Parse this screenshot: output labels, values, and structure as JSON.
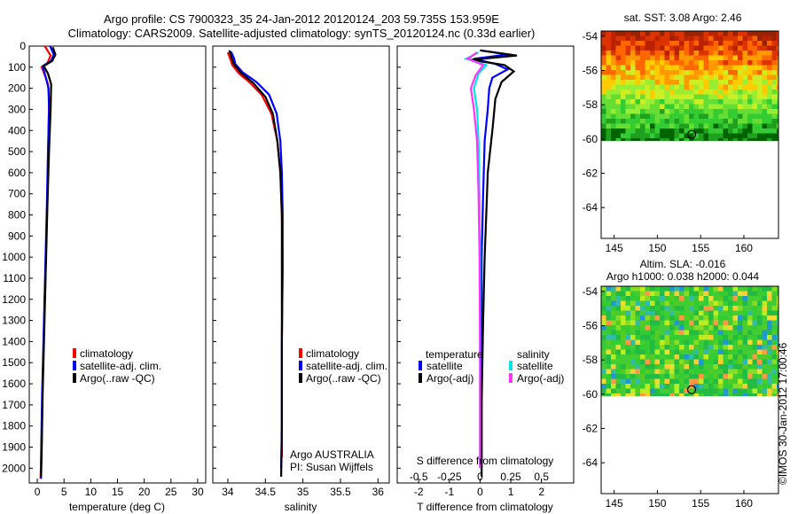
{
  "header": {
    "line1": "Argo profile: CS 7900323_35 24-Jan-2012 20120124_203 59.735S 153.959E",
    "line2": "Climatology: CARS2009. Satellite-adjusted climatology: synTS_20120124.nc (0.33d earlier)"
  },
  "footer": {
    "agency": "Argo AUSTRALIA",
    "pi": "PI: Susan Wijffels",
    "stamp": "©IMOS 30-Jan-2012 17:00:46"
  },
  "colors": {
    "climatology": "#ff0000",
    "satellite": "#0000ff",
    "argo": "#000000",
    "sal_sat": "#00e5e5",
    "sal_argo": "#ff33ff"
  },
  "chart_data": [
    {
      "id": "temperature",
      "type": "line",
      "xlabel": "temperature (deg C)",
      "xlim": [
        -1.5,
        31.5
      ],
      "ylim": [
        2070,
        0
      ],
      "xticks": [
        0,
        5,
        10,
        15,
        20,
        25,
        30
      ],
      "yticks": [
        0,
        100,
        200,
        300,
        400,
        500,
        600,
        700,
        800,
        900,
        1000,
        1100,
        1200,
        1300,
        1400,
        1500,
        1600,
        1700,
        1800,
        1900,
        2000
      ],
      "legend": [
        "climatology",
        "satellite-adj. clim.",
        "Argo(..raw -QC)"
      ],
      "series": [
        {
          "name": "climatology",
          "color": "#ff0000",
          "points": [
            [
              1.4,
              0
            ],
            [
              2.5,
              45
            ],
            [
              1.9,
              80
            ],
            [
              0.8,
              100
            ],
            [
              1.3,
              130
            ],
            [
              2.0,
              180
            ],
            [
              2.2,
              250
            ],
            [
              2.1,
              400
            ],
            [
              1.9,
              700
            ],
            [
              1.6,
              1000
            ],
            [
              1.3,
              1300
            ],
            [
              1.0,
              1600
            ],
            [
              0.8,
              1900
            ],
            [
              0.6,
              2050
            ]
          ]
        },
        {
          "name": "satellite-adj. clim.",
          "color": "#0000ff",
          "points": [
            [
              2.4,
              0
            ],
            [
              3.1,
              40
            ],
            [
              2.6,
              70
            ],
            [
              1.0,
              95
            ],
            [
              1.5,
              140
            ],
            [
              2.1,
              200
            ],
            [
              2.2,
              300
            ],
            [
              2.0,
              500
            ],
            [
              1.8,
              750
            ],
            [
              1.5,
              1050
            ],
            [
              1.2,
              1350
            ],
            [
              0.9,
              1650
            ],
            [
              0.7,
              1950
            ],
            [
              0.7,
              2050
            ]
          ]
        },
        {
          "name": "Argo(..raw -QC)",
          "color": "#000000",
          "points": [
            [
              2.9,
              5
            ],
            [
              3.4,
              40
            ],
            [
              2.8,
              70
            ],
            [
              1.2,
              95
            ],
            [
              2.0,
              130
            ],
            [
              2.6,
              180
            ],
            [
              2.5,
              300
            ],
            [
              2.2,
              500
            ],
            [
              1.9,
              750
            ],
            [
              1.6,
              1050
            ],
            [
              1.3,
              1350
            ],
            [
              1.0,
              1650
            ],
            [
              0.8,
              1950
            ],
            [
              0.7,
              2040
            ]
          ]
        }
      ]
    },
    {
      "id": "salinity",
      "type": "line",
      "xlabel": "salinity",
      "xlim": [
        33.8,
        36.15
      ],
      "ylim": [
        2070,
        0
      ],
      "xticks": [
        34,
        34.5,
        35,
        35.5,
        36
      ],
      "legend": [
        "climatology",
        "satellite-adj. clim.",
        "Argo(..raw -QC)"
      ],
      "series": [
        {
          "name": "climatology",
          "color": "#ff0000",
          "points": [
            [
              34.0,
              30
            ],
            [
              34.03,
              60
            ],
            [
              34.06,
              90
            ],
            [
              34.15,
              130
            ],
            [
              34.3,
              175
            ],
            [
              34.45,
              230
            ],
            [
              34.58,
              320
            ],
            [
              34.66,
              450
            ],
            [
              34.7,
              600
            ],
            [
              34.72,
              800
            ],
            [
              34.73,
              1050
            ],
            [
              34.72,
              1400
            ],
            [
              34.72,
              1800
            ],
            [
              34.72,
              1950
            ]
          ]
        },
        {
          "name": "satellite-adj. clim.",
          "color": "#0000ff",
          "points": [
            [
              34.04,
              25
            ],
            [
              34.08,
              55
            ],
            [
              34.1,
              85
            ],
            [
              34.2,
              125
            ],
            [
              34.38,
              170
            ],
            [
              34.55,
              230
            ],
            [
              34.65,
              320
            ],
            [
              34.7,
              450
            ],
            [
              34.72,
              600
            ],
            [
              34.73,
              800
            ],
            [
              34.73,
              1050
            ],
            [
              34.72,
              1400
            ],
            [
              34.72,
              1800
            ],
            [
              34.71,
              2000
            ]
          ]
        },
        {
          "name": "Argo(..raw -QC)",
          "color": "#000000",
          "points": [
            [
              34.02,
              20
            ],
            [
              34.05,
              55
            ],
            [
              34.08,
              85
            ],
            [
              34.17,
              125
            ],
            [
              34.34,
              175
            ],
            [
              34.5,
              240
            ],
            [
              34.6,
              320
            ],
            [
              34.66,
              450
            ],
            [
              34.7,
              600
            ],
            [
              34.72,
              800
            ],
            [
              34.72,
              1050
            ],
            [
              34.72,
              1400
            ],
            [
              34.72,
              1800
            ],
            [
              34.71,
              2040
            ]
          ]
        }
      ]
    },
    {
      "id": "difference",
      "type": "line",
      "xlabel": "T difference from climatology",
      "xlabel_top": "S difference from climatology",
      "xlim": [
        -2.7,
        3.05
      ],
      "ylim": [
        2070,
        0
      ],
      "xticks": [
        -2,
        -1,
        0,
        1,
        2
      ],
      "xticks_top": [
        -0.5,
        -0.25,
        0,
        0.25,
        0.5
      ],
      "legend_titles": [
        "temperature",
        "salinity"
      ],
      "legend": [
        "satellite",
        "Argo(-adj)",
        "satellite",
        "Argo(-adj)"
      ],
      "series": [
        {
          "name": "satellite",
          "color": "#0000ff",
          "points": [
            [
              0,
              20
            ],
            [
              0.9,
              40
            ],
            [
              -0.2,
              60
            ],
            [
              0.5,
              85
            ],
            [
              0.9,
              110
            ],
            [
              0.4,
              150
            ],
            [
              0.3,
              200
            ],
            [
              0.25,
              300
            ],
            [
              0.15,
              450
            ],
            [
              0.1,
              700
            ],
            [
              0.05,
              1000
            ],
            [
              0.05,
              1300
            ],
            [
              0.05,
              1700
            ],
            [
              0.05,
              2000
            ]
          ]
        },
        {
          "name": "Argo(-adj)",
          "color": "#000000",
          "points": [
            [
              0,
              20
            ],
            [
              1.2,
              45
            ],
            [
              -0.3,
              65
            ],
            [
              0.8,
              90
            ],
            [
              1.1,
              120
            ],
            [
              0.7,
              170
            ],
            [
              0.5,
              250
            ],
            [
              0.4,
              400
            ],
            [
              0.25,
              600
            ],
            [
              0.2,
              800
            ],
            [
              0.15,
              1000
            ],
            [
              0.1,
              1300
            ],
            [
              0.05,
              1700
            ],
            [
              0.05,
              2040
            ]
          ]
        },
        {
          "name": "satellite",
          "color": "#00e5e5",
          "points": [
            [
              -0.05,
              30
            ],
            [
              -0.45,
              60
            ],
            [
              0.2,
              90
            ],
            [
              -0.05,
              130
            ],
            [
              -0.2,
              200
            ],
            [
              -0.1,
              300
            ],
            [
              -0.05,
              450
            ],
            [
              -0.02,
              700
            ],
            [
              0,
              1000
            ],
            [
              0,
              1500
            ],
            [
              0,
              2000
            ]
          ]
        },
        {
          "name": "Argo(-adj)",
          "color": "#ff33ff",
          "points": [
            [
              -0.1,
              30
            ],
            [
              -0.4,
              60
            ],
            [
              0.1,
              90
            ],
            [
              -0.15,
              140
            ],
            [
              -0.3,
              200
            ],
            [
              -0.2,
              300
            ],
            [
              -0.1,
              450
            ],
            [
              -0.05,
              700
            ],
            [
              -0.02,
              1000
            ],
            [
              0,
              1500
            ],
            [
              0,
              2000
            ]
          ]
        }
      ]
    },
    {
      "id": "sst_map",
      "type": "heatmap",
      "title": "sat. SST: 3.08 Argo: 2.46",
      "xlim": [
        143.5,
        164
      ],
      "ylim": [
        -65.8,
        -53.7
      ],
      "xticks": [
        145,
        150,
        155,
        160
      ],
      "yticks": [
        -54,
        -56,
        -58,
        -60,
        -62,
        -64
      ],
      "data_extent_lat": [
        -60.1,
        -53.7
      ],
      "marker": {
        "lon": 153.959,
        "lat": -59.735
      }
    },
    {
      "id": "sla_map",
      "type": "heatmap",
      "title": "Altim. SLA: -0.016",
      "subtitle": "Argo h1000: 0.038 h2000: 0.044",
      "xlim": [
        143.5,
        164
      ],
      "ylim": [
        -65.8,
        -53.7
      ],
      "xticks": [
        145,
        150,
        155,
        160
      ],
      "yticks": [
        -54,
        -56,
        -58,
        -60,
        -62,
        -64
      ],
      "data_extent_lat": [
        -60.1,
        -53.7
      ],
      "marker": {
        "lon": 153.959,
        "lat": -59.735
      }
    }
  ]
}
